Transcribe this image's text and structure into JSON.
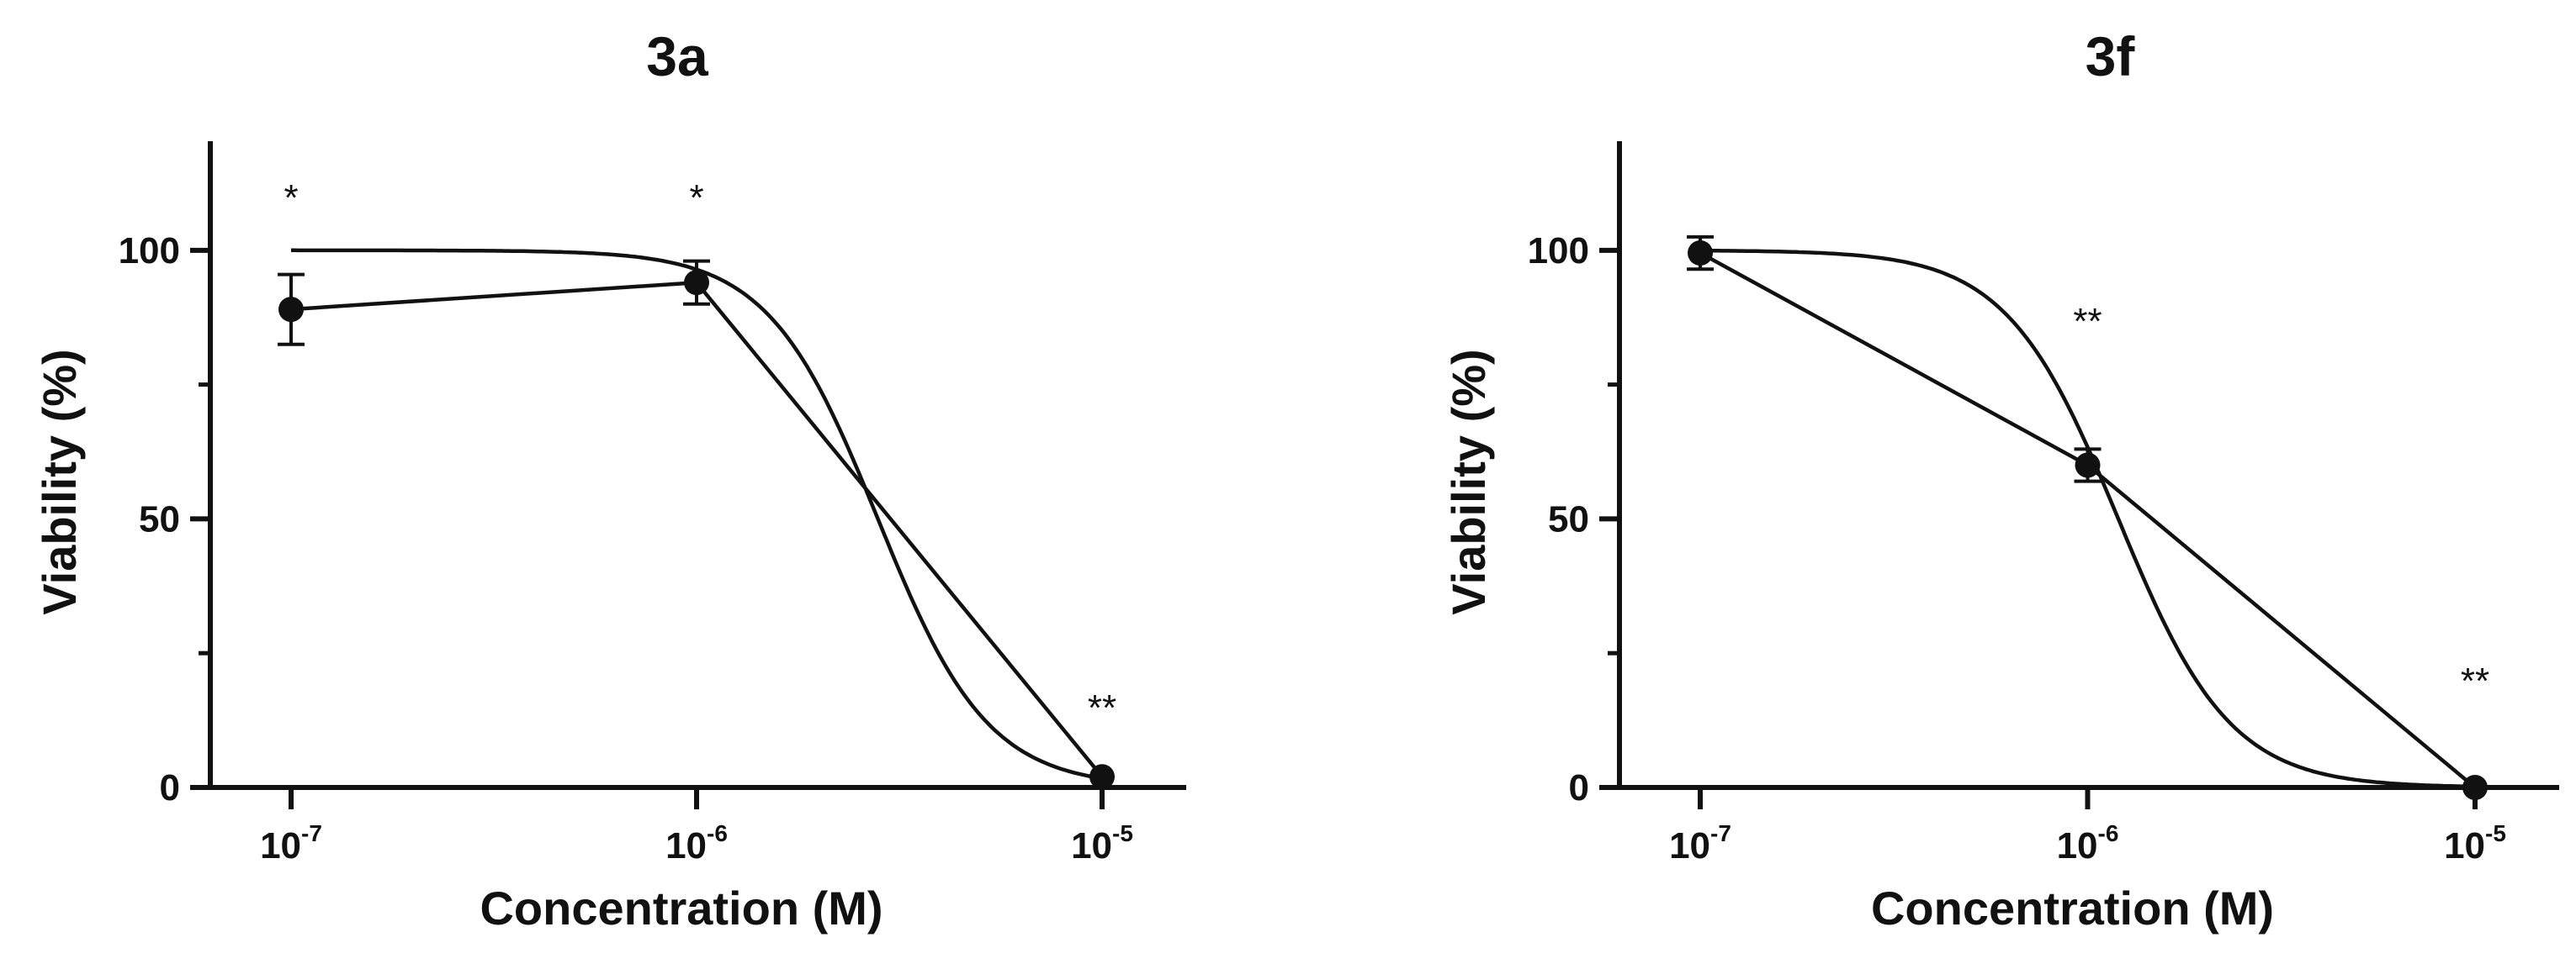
{
  "chart_data": [
    {
      "id": "3a",
      "type": "line",
      "title": "3a",
      "xlabel": "Concentration (M)",
      "ylabel": "Viability (%)",
      "xscale": "log",
      "xlim": [
        1e-07,
        1e-05
      ],
      "ylim": [
        0,
        120
      ],
      "x_ticks": [
        {
          "value": 1e-07,
          "base": "10",
          "exponent": "-7"
        },
        {
          "value": 1e-06,
          "base": "10",
          "exponent": "-6"
        },
        {
          "value": 1e-05,
          "base": "10",
          "exponent": "-5"
        }
      ],
      "y_ticks": [
        0,
        50,
        100
      ],
      "y_minor_ticks": [
        25,
        75,
        125
      ],
      "grid": false,
      "legend": false,
      "series": [
        {
          "x": [
            1e-07,
            1e-06,
            1e-05
          ],
          "y": [
            89,
            94,
            2
          ],
          "error": [
            6.5,
            4,
            0.8
          ],
          "marker": "circle",
          "connected": true
        }
      ],
      "fit_curve": {
        "type": "sigmoid",
        "top": 100,
        "bottom": 0,
        "ec50": 2.8e-06,
        "hill": 3.2
      },
      "annotations": [
        {
          "text": "*",
          "x": 1e-07,
          "y": 110
        },
        {
          "text": "*",
          "x": 1e-06,
          "y": 110
        },
        {
          "text": "**",
          "x": 1e-05,
          "y": 15
        }
      ],
      "color": "#111111"
    },
    {
      "id": "3f",
      "type": "line",
      "title": "3f",
      "xlabel": "Concentration (M)",
      "ylabel": "Viability (%)",
      "xscale": "log",
      "xlim": [
        1e-07,
        1e-05
      ],
      "ylim": [
        0,
        120
      ],
      "x_ticks": [
        {
          "value": 1e-07,
          "base": "10",
          "exponent": "-7"
        },
        {
          "value": 1e-06,
          "base": "10",
          "exponent": "-6"
        },
        {
          "value": 1e-05,
          "base": "10",
          "exponent": "-5"
        }
      ],
      "y_ticks": [
        0,
        50,
        100
      ],
      "y_minor_ticks": [
        25,
        75,
        125
      ],
      "grid": false,
      "legend": false,
      "series": [
        {
          "x": [
            1e-07,
            1e-06,
            1e-05
          ],
          "y": [
            99.5,
            60,
            0
          ],
          "error": [
            3,
            3,
            0.5
          ],
          "marker": "circle",
          "connected": true
        }
      ],
      "fit_curve": {
        "type": "sigmoid",
        "top": 100,
        "bottom": 0,
        "ec50": 1.2e-06,
        "hill": 3.0
      },
      "annotations": [
        {
          "text": "**",
          "x": 1e-06,
          "y": 87
        },
        {
          "text": "**",
          "x": 1e-05,
          "y": 20
        }
      ],
      "color": "#111111"
    }
  ]
}
